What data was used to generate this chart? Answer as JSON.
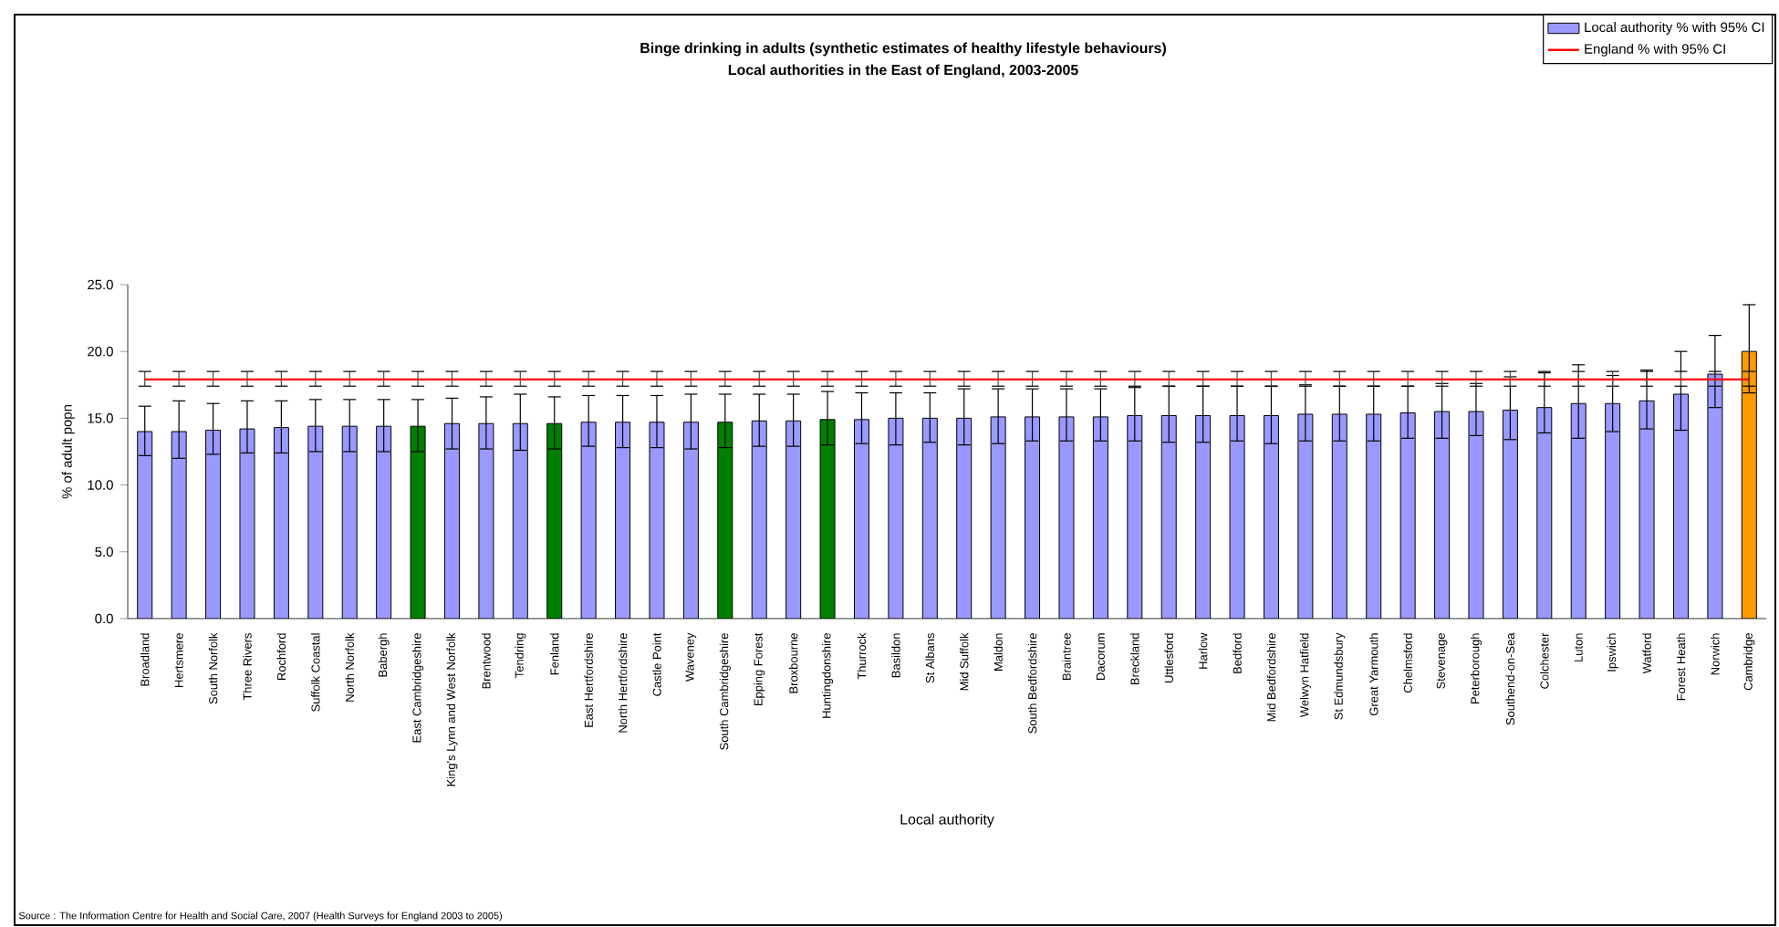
{
  "chart_data": {
    "type": "bar",
    "title": "Binge drinking in adults (synthetic estimates of healthy lifestyle behaviours)",
    "subtitle": "Local authorities in the East of England, 2003-2005",
    "xlabel": "Local authority",
    "ylabel": "% of adult popn",
    "categories": [
      "Broadland",
      "Hertsmere",
      "South Norfolk",
      "Three Rivers",
      "Rochford",
      "Suffolk Coastal",
      "North Norfolk",
      "Babergh",
      "East Cambridgeshire",
      "King's Lynn and West Norfolk",
      "Brentwood",
      "Tendring",
      "Fenland",
      "East Hertfordshire",
      "North Hertfordshire",
      "Castle Point",
      "Waveney",
      "South Cambridgeshire",
      "Epping Forest",
      "Broxbourne",
      "Huntingdonshire",
      "Thurrock",
      "Basildon",
      "St Albans",
      "Mid Suffolk",
      "Maldon",
      "South Bedfordshire",
      "Braintree",
      "Dacorum",
      "Breckland",
      "Uttlesford",
      "Harlow",
      "Bedford",
      "Mid Bedfordshire",
      "Welwyn Hatfield",
      "St Edmundsbury",
      "Great Yarmouth",
      "Chelmsford",
      "Stevenage",
      "Peterborough",
      "Southend-on-Sea",
      "Colchester",
      "Luton",
      "Ipswich",
      "Watford",
      "Forest Heath",
      "Norwich",
      "Cambridge"
    ],
    "series": [
      {
        "name": "Local authority % with 95% CI",
        "color": "#9999ff",
        "colors": [
          "#9999ff",
          "#9999ff",
          "#9999ff",
          "#9999ff",
          "#9999ff",
          "#9999ff",
          "#9999ff",
          "#9999ff",
          "#008000",
          "#9999ff",
          "#9999ff",
          "#9999ff",
          "#008000",
          "#9999ff",
          "#9999ff",
          "#9999ff",
          "#9999ff",
          "#008000",
          "#9999ff",
          "#9999ff",
          "#008000",
          "#9999ff",
          "#9999ff",
          "#9999ff",
          "#9999ff",
          "#9999ff",
          "#9999ff",
          "#9999ff",
          "#9999ff",
          "#9999ff",
          "#9999ff",
          "#9999ff",
          "#9999ff",
          "#9999ff",
          "#9999ff",
          "#9999ff",
          "#9999ff",
          "#9999ff",
          "#9999ff",
          "#9999ff",
          "#9999ff",
          "#9999ff",
          "#9999ff",
          "#9999ff",
          "#9999ff",
          "#9999ff",
          "#9999ff",
          "#ff9900"
        ],
        "values": [
          14.0,
          14.0,
          14.1,
          14.2,
          14.3,
          14.4,
          14.4,
          14.4,
          14.4,
          14.6,
          14.6,
          14.6,
          14.6,
          14.7,
          14.7,
          14.7,
          14.7,
          14.7,
          14.8,
          14.8,
          14.9,
          14.9,
          15.0,
          15.0,
          15.0,
          15.1,
          15.1,
          15.1,
          15.1,
          15.2,
          15.2,
          15.2,
          15.2,
          15.2,
          15.3,
          15.3,
          15.3,
          15.4,
          15.5,
          15.5,
          15.6,
          15.8,
          16.1,
          16.1,
          16.3,
          16.8,
          18.3,
          20.0
        ],
        "errors": [
          [
            12.2,
            15.9
          ],
          [
            12.0,
            16.3
          ],
          [
            12.3,
            16.1
          ],
          [
            12.4,
            16.3
          ],
          [
            12.4,
            16.3
          ],
          [
            12.5,
            16.4
          ],
          [
            12.5,
            16.4
          ],
          [
            12.5,
            16.4
          ],
          [
            12.5,
            16.4
          ],
          [
            12.7,
            16.5
          ],
          [
            12.7,
            16.6
          ],
          [
            12.6,
            16.8
          ],
          [
            12.7,
            16.6
          ],
          [
            12.9,
            16.7
          ],
          [
            12.8,
            16.7
          ],
          [
            12.8,
            16.7
          ],
          [
            12.7,
            16.8
          ],
          [
            12.8,
            16.8
          ],
          [
            12.9,
            16.8
          ],
          [
            12.9,
            16.8
          ],
          [
            13.0,
            17.0
          ],
          [
            13.1,
            16.9
          ],
          [
            13.0,
            16.9
          ],
          [
            13.2,
            16.9
          ],
          [
            13.0,
            17.2
          ],
          [
            13.1,
            17.2
          ],
          [
            13.3,
            17.2
          ],
          [
            13.3,
            17.2
          ],
          [
            13.3,
            17.2
          ],
          [
            13.3,
            17.3
          ],
          [
            13.2,
            17.4
          ],
          [
            13.2,
            17.4
          ],
          [
            13.3,
            17.4
          ],
          [
            13.1,
            17.4
          ],
          [
            13.3,
            17.5
          ],
          [
            13.3,
            17.4
          ],
          [
            13.3,
            17.4
          ],
          [
            13.5,
            17.4
          ],
          [
            13.5,
            17.6
          ],
          [
            13.7,
            17.6
          ],
          [
            13.4,
            18.1
          ],
          [
            13.9,
            18.4
          ],
          [
            13.5,
            19.0
          ],
          [
            14.0,
            18.2
          ],
          [
            14.2,
            18.6
          ],
          [
            14.1,
            20.0
          ],
          [
            15.8,
            21.2
          ],
          [
            16.9,
            23.5
          ]
        ]
      },
      {
        "name": "England % with 95% CI",
        "type": "line",
        "color": "#ff0000",
        "values": [
          17.9,
          17.9,
          17.9,
          17.9,
          17.9,
          17.9,
          17.9,
          17.9,
          17.9,
          17.9,
          17.9,
          17.9,
          17.9,
          17.9,
          17.9,
          17.9,
          17.9,
          17.9,
          17.9,
          17.9,
          17.9,
          17.9,
          17.9,
          17.9,
          17.9,
          17.9,
          17.9,
          17.9,
          17.9,
          17.9,
          17.9,
          17.9,
          17.9,
          17.9,
          17.9,
          17.9,
          17.9,
          17.9,
          17.9,
          17.9,
          17.9,
          17.9,
          17.9,
          17.9,
          17.9,
          17.9,
          17.9,
          17.9
        ],
        "errors": [
          [
            17.4,
            18.5
          ],
          [
            17.4,
            18.5
          ],
          [
            17.4,
            18.5
          ],
          [
            17.4,
            18.5
          ],
          [
            17.4,
            18.5
          ],
          [
            17.4,
            18.5
          ],
          [
            17.4,
            18.5
          ],
          [
            17.4,
            18.5
          ],
          [
            17.4,
            18.5
          ],
          [
            17.4,
            18.5
          ],
          [
            17.4,
            18.5
          ],
          [
            17.4,
            18.5
          ],
          [
            17.4,
            18.5
          ],
          [
            17.4,
            18.5
          ],
          [
            17.4,
            18.5
          ],
          [
            17.4,
            18.5
          ],
          [
            17.4,
            18.5
          ],
          [
            17.4,
            18.5
          ],
          [
            17.4,
            18.5
          ],
          [
            17.4,
            18.5
          ],
          [
            17.4,
            18.5
          ],
          [
            17.4,
            18.5
          ],
          [
            17.4,
            18.5
          ],
          [
            17.4,
            18.5
          ],
          [
            17.4,
            18.5
          ],
          [
            17.4,
            18.5
          ],
          [
            17.4,
            18.5
          ],
          [
            17.4,
            18.5
          ],
          [
            17.4,
            18.5
          ],
          [
            17.4,
            18.5
          ],
          [
            17.4,
            18.5
          ],
          [
            17.4,
            18.5
          ],
          [
            17.4,
            18.5
          ],
          [
            17.4,
            18.5
          ],
          [
            17.4,
            18.5
          ],
          [
            17.4,
            18.5
          ],
          [
            17.4,
            18.5
          ],
          [
            17.4,
            18.5
          ],
          [
            17.4,
            18.5
          ],
          [
            17.4,
            18.5
          ],
          [
            17.4,
            18.5
          ],
          [
            17.4,
            18.5
          ],
          [
            17.4,
            18.5
          ],
          [
            17.4,
            18.5
          ],
          [
            17.4,
            18.5
          ],
          [
            17.4,
            18.5
          ],
          [
            17.4,
            18.5
          ],
          [
            17.4,
            18.5
          ]
        ]
      }
    ],
    "ylim": [
      0,
      25
    ],
    "yticks": [
      {
        "value": 0,
        "label": "0.0"
      },
      {
        "value": 5,
        "label": "5.0"
      },
      {
        "value": 10,
        "label": "10.0"
      },
      {
        "value": 15,
        "label": "15.0"
      },
      {
        "value": 20,
        "label": "20.0"
      },
      {
        "value": 25,
        "label": "25.0"
      }
    ],
    "legend": "top right",
    "annotations": [
      "Source : The Information Centre for Health and Social Care, 2007 (Health Surveys for England 2003 to 2005)"
    ]
  }
}
